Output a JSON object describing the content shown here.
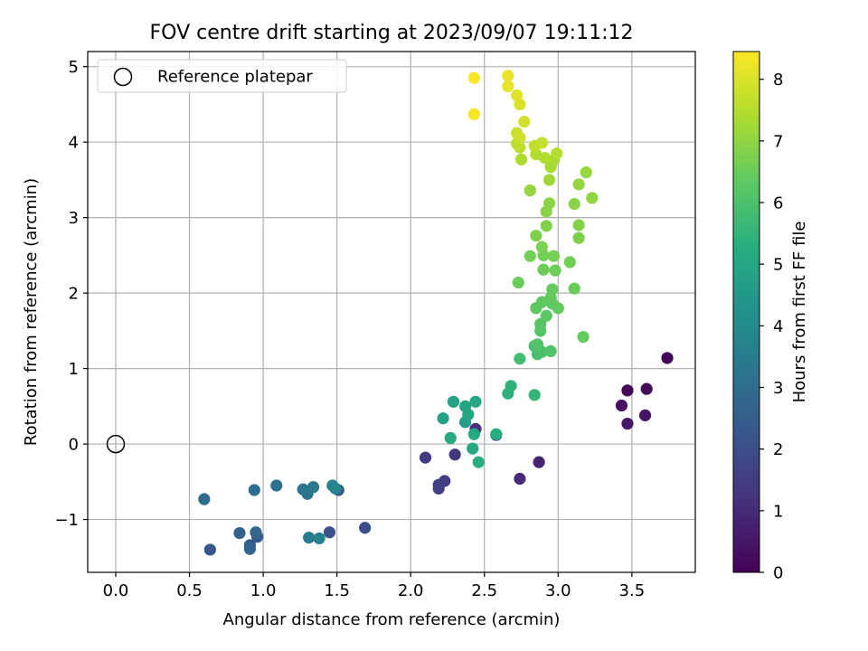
{
  "chart_data": {
    "type": "scatter",
    "title": "FOV centre drift starting at 2023/09/07 19:11:12",
    "xlabel": "Angular distance from reference (arcmin)",
    "ylabel": "Rotation from reference (arcmin)",
    "xlim": [
      -0.19,
      3.93
    ],
    "ylim": [
      -1.7,
      5.2
    ],
    "xticks": [
      0.0,
      0.5,
      1.0,
      1.5,
      2.0,
      2.5,
      3.0,
      3.5
    ],
    "xtick_labels": [
      "0.0",
      "0.5",
      "1.0",
      "1.5",
      "2.0",
      "2.5",
      "3.0",
      "3.5"
    ],
    "yticks": [
      -1,
      0,
      1,
      2,
      3,
      4,
      5
    ],
    "ytick_labels": [
      "−1",
      "0",
      "1",
      "2",
      "3",
      "4",
      "5"
    ],
    "grid": true,
    "legend": {
      "position": "top-left",
      "entries": [
        "Reference platepar"
      ]
    },
    "reference_point": {
      "x": 0.0,
      "y": 0.0
    },
    "colorbar": {
      "label": "Hours from first FF file",
      "colormap": "viridis",
      "range": [
        0,
        8.45
      ],
      "ticks": [
        0,
        1,
        2,
        3,
        4,
        5,
        6,
        7,
        8
      ],
      "tick_labels": [
        "0",
        "1",
        "2",
        "3",
        "4",
        "5",
        "6",
        "7",
        "8"
      ]
    },
    "points": [
      {
        "x": 3.74,
        "y": 1.14,
        "h": 0.05
      },
      {
        "x": 3.47,
        "y": 0.71,
        "h": 0.15
      },
      {
        "x": 3.6,
        "y": 0.73,
        "h": 0.25
      },
      {
        "x": 3.43,
        "y": 0.51,
        "h": 0.35
      },
      {
        "x": 3.59,
        "y": 0.38,
        "h": 0.45
      },
      {
        "x": 3.47,
        "y": 0.27,
        "h": 0.55
      },
      {
        "x": 2.87,
        "y": -0.24,
        "h": 0.85
      },
      {
        "x": 2.74,
        "y": -0.46,
        "h": 1.0
      },
      {
        "x": 2.44,
        "y": 0.2,
        "h": 1.15
      },
      {
        "x": 2.58,
        "y": 0.12,
        "h": 1.2
      },
      {
        "x": 2.3,
        "y": -0.14,
        "h": 1.3
      },
      {
        "x": 2.1,
        "y": -0.18,
        "h": 1.45
      },
      {
        "x": 2.23,
        "y": -0.49,
        "h": 1.5
      },
      {
        "x": 2.19,
        "y": -0.54,
        "h": 1.55
      },
      {
        "x": 2.19,
        "y": -0.59,
        "h": 1.6
      },
      {
        "x": 1.69,
        "y": -1.11,
        "h": 2.0
      },
      {
        "x": 1.45,
        "y": -1.17,
        "h": 2.1
      },
      {
        "x": 1.51,
        "y": -0.61,
        "h": 2.2
      },
      {
        "x": 0.64,
        "y": -1.4,
        "h": 2.3
      },
      {
        "x": 0.96,
        "y": -1.23,
        "h": 2.35
      },
      {
        "x": 0.91,
        "y": -1.34,
        "h": 2.45
      },
      {
        "x": 0.84,
        "y": -1.18,
        "h": 2.6
      },
      {
        "x": 0.91,
        "y": -1.39,
        "h": 2.7
      },
      {
        "x": 0.95,
        "y": -1.17,
        "h": 2.8
      },
      {
        "x": 0.6,
        "y": -0.73,
        "h": 2.95
      },
      {
        "x": 0.94,
        "y": -0.61,
        "h": 3.05
      },
      {
        "x": 1.09,
        "y": -0.55,
        "h": 3.15
      },
      {
        "x": 1.3,
        "y": -0.66,
        "h": 3.25
      },
      {
        "x": 1.27,
        "y": -0.6,
        "h": 3.35
      },
      {
        "x": 1.34,
        "y": -0.57,
        "h": 3.45
      },
      {
        "x": 1.31,
        "y": -1.24,
        "h": 3.55
      },
      {
        "x": 1.38,
        "y": -1.25,
        "h": 3.65
      },
      {
        "x": 1.47,
        "y": -0.55,
        "h": 3.75
      },
      {
        "x": 1.49,
        "y": -0.59,
        "h": 3.85
      },
      {
        "x": 2.37,
        "y": 0.29,
        "h": 4.7
      },
      {
        "x": 2.29,
        "y": 0.56,
        "h": 4.8
      },
      {
        "x": 2.22,
        "y": 0.34,
        "h": 4.85
      },
      {
        "x": 2.37,
        "y": 0.5,
        "h": 4.9
      },
      {
        "x": 2.39,
        "y": 0.39,
        "h": 4.95
      },
      {
        "x": 2.44,
        "y": 0.56,
        "h": 5.0
      },
      {
        "x": 2.42,
        "y": -0.06,
        "h": 5.05
      },
      {
        "x": 2.27,
        "y": 0.08,
        "h": 5.1
      },
      {
        "x": 2.43,
        "y": 0.13,
        "h": 5.15
      },
      {
        "x": 2.58,
        "y": 0.13,
        "h": 5.2
      },
      {
        "x": 2.46,
        "y": -0.24,
        "h": 5.3
      },
      {
        "x": 2.66,
        "y": 0.67,
        "h": 5.4
      },
      {
        "x": 2.68,
        "y": 0.77,
        "h": 5.45
      },
      {
        "x": 2.84,
        "y": 0.65,
        "h": 5.55
      },
      {
        "x": 2.74,
        "y": 1.13,
        "h": 5.85
      },
      {
        "x": 2.84,
        "y": 1.3,
        "h": 5.9
      },
      {
        "x": 2.86,
        "y": 1.19,
        "h": 5.95
      },
      {
        "x": 2.89,
        "y": 1.22,
        "h": 6.0
      },
      {
        "x": 2.95,
        "y": 1.23,
        "h": 6.05
      },
      {
        "x": 2.86,
        "y": 1.32,
        "h": 6.1
      },
      {
        "x": 2.88,
        "y": 1.5,
        "h": 6.15
      },
      {
        "x": 2.88,
        "y": 1.59,
        "h": 6.2
      },
      {
        "x": 2.92,
        "y": 1.7,
        "h": 6.25
      },
      {
        "x": 2.85,
        "y": 1.8,
        "h": 6.3
      },
      {
        "x": 2.89,
        "y": 1.88,
        "h": 6.35
      },
      {
        "x": 2.96,
        "y": 1.86,
        "h": 6.35
      },
      {
        "x": 2.95,
        "y": 1.94,
        "h": 6.4
      },
      {
        "x": 3.0,
        "y": 1.8,
        "h": 6.4
      },
      {
        "x": 2.96,
        "y": 2.05,
        "h": 6.45
      },
      {
        "x": 3.17,
        "y": 1.42,
        "h": 6.45
      },
      {
        "x": 3.11,
        "y": 2.06,
        "h": 6.5
      },
      {
        "x": 2.73,
        "y": 2.14,
        "h": 6.5
      },
      {
        "x": 2.9,
        "y": 2.31,
        "h": 6.55
      },
      {
        "x": 2.98,
        "y": 2.3,
        "h": 6.55
      },
      {
        "x": 3.08,
        "y": 2.41,
        "h": 6.6
      },
      {
        "x": 2.81,
        "y": 2.49,
        "h": 6.6
      },
      {
        "x": 2.9,
        "y": 2.5,
        "h": 6.65
      },
      {
        "x": 2.97,
        "y": 2.49,
        "h": 6.65
      },
      {
        "x": 2.89,
        "y": 2.61,
        "h": 6.7
      },
      {
        "x": 2.85,
        "y": 2.76,
        "h": 6.75
      },
      {
        "x": 3.14,
        "y": 2.73,
        "h": 6.75
      },
      {
        "x": 2.92,
        "y": 2.89,
        "h": 6.8
      },
      {
        "x": 3.14,
        "y": 2.9,
        "h": 6.85
      },
      {
        "x": 2.92,
        "y": 3.08,
        "h": 6.9
      },
      {
        "x": 3.11,
        "y": 3.18,
        "h": 6.9
      },
      {
        "x": 2.94,
        "y": 3.19,
        "h": 6.95
      },
      {
        "x": 3.23,
        "y": 3.26,
        "h": 7.0
      },
      {
        "x": 2.81,
        "y": 3.36,
        "h": 7.05
      },
      {
        "x": 3.14,
        "y": 3.44,
        "h": 7.05
      },
      {
        "x": 3.19,
        "y": 3.6,
        "h": 7.1
      },
      {
        "x": 2.94,
        "y": 3.5,
        "h": 7.2
      },
      {
        "x": 2.95,
        "y": 3.67,
        "h": 7.3
      },
      {
        "x": 2.97,
        "y": 3.76,
        "h": 7.35
      },
      {
        "x": 2.75,
        "y": 3.77,
        "h": 7.4
      },
      {
        "x": 2.91,
        "y": 3.79,
        "h": 7.45
      },
      {
        "x": 2.99,
        "y": 3.85,
        "h": 7.5
      },
      {
        "x": 2.85,
        "y": 3.84,
        "h": 7.5
      },
      {
        "x": 2.72,
        "y": 3.98,
        "h": 7.55
      },
      {
        "x": 2.74,
        "y": 3.93,
        "h": 7.6
      },
      {
        "x": 2.84,
        "y": 3.95,
        "h": 7.65
      },
      {
        "x": 2.89,
        "y": 3.99,
        "h": 7.7
      },
      {
        "x": 2.72,
        "y": 4.12,
        "h": 7.75
      },
      {
        "x": 2.74,
        "y": 4.06,
        "h": 7.8
      },
      {
        "x": 2.77,
        "y": 4.27,
        "h": 7.9
      },
      {
        "x": 2.74,
        "y": 4.5,
        "h": 8.0
      },
      {
        "x": 2.72,
        "y": 4.62,
        "h": 8.05
      },
      {
        "x": 2.66,
        "y": 4.74,
        "h": 8.15
      },
      {
        "x": 2.66,
        "y": 4.88,
        "h": 8.2
      },
      {
        "x": 2.43,
        "y": 4.37,
        "h": 8.35
      },
      {
        "x": 2.43,
        "y": 4.85,
        "h": 8.4
      }
    ]
  }
}
